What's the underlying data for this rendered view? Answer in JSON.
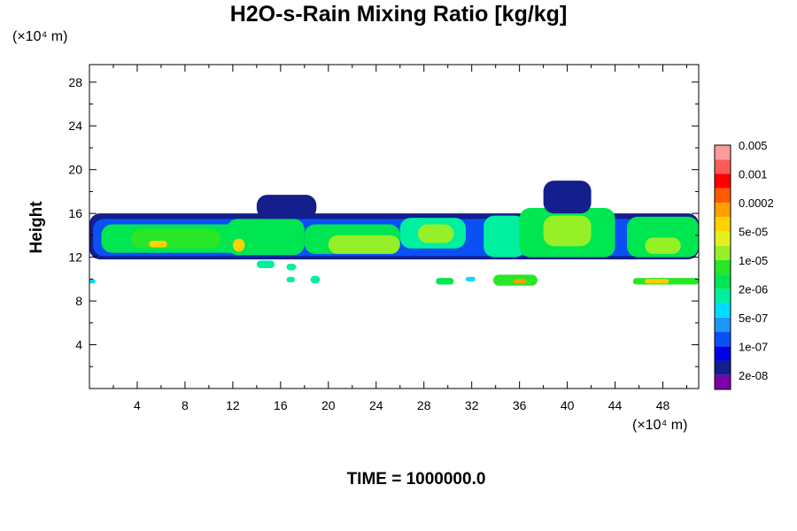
{
  "chart_data": {
    "type": "heatmap",
    "title": "H2O-s-Rain Mixing Ratio [kg/kg]",
    "ylabel": "Height",
    "x_unit": "(×10⁴ m)",
    "y_unit": "(×10⁴ m)",
    "xlim": [
      0,
      51
    ],
    "ylim": [
      0,
      29.6
    ],
    "x_ticks": [
      4,
      8,
      12,
      16,
      20,
      24,
      28,
      32,
      36,
      40,
      44,
      48
    ],
    "y_ticks": [
      4,
      8,
      12,
      16,
      20,
      24,
      28
    ],
    "time_label": "TIME = 1000000.0",
    "legend": {
      "placement": "right",
      "colors": [
        "#7b00a8",
        "#141e8c",
        "#0000e6",
        "#0a50f5",
        "#1e96fa",
        "#00dcff",
        "#00f0a0",
        "#00e650",
        "#28e628",
        "#96f028",
        "#e6f01e",
        "#ffd200",
        "#ffa000",
        "#ff5a00",
        "#ff0000",
        "#ff5a5a",
        "#ff9b9b"
      ],
      "labels": [
        "2e-08",
        "1e-07",
        "5e-07",
        "2e-06",
        "1e-05",
        "5e-05",
        "0.0002",
        "0.001",
        "0.005"
      ]
    },
    "regions": [
      {
        "x0": 0,
        "x1": 51,
        "y0": 11.8,
        "y1": 16.0,
        "level": 1
      },
      {
        "x0": 0.3,
        "x1": 50.5,
        "y0": 12.1,
        "y1": 15.5,
        "level": 3
      },
      {
        "x0": 1,
        "x1": 13,
        "y0": 12.4,
        "y1": 15.0,
        "level": 7
      },
      {
        "x0": 3.5,
        "x1": 11,
        "y0": 12.8,
        "y1": 14.6,
        "level": 8
      },
      {
        "x0": 5,
        "x1": 6.5,
        "y0": 12.9,
        "y1": 13.5,
        "level": 11
      },
      {
        "x0": 11.5,
        "x1": 18,
        "y0": 12.2,
        "y1": 15.5,
        "level": 7
      },
      {
        "x0": 12,
        "x1": 13,
        "y0": 12.5,
        "y1": 13.7,
        "level": 11
      },
      {
        "x0": 14,
        "x1": 19,
        "y0": 15.5,
        "y1": 17.7,
        "level": 1
      },
      {
        "x0": 18,
        "x1": 26,
        "y0": 12.3,
        "y1": 15.0,
        "level": 7
      },
      {
        "x0": 20,
        "x1": 26,
        "y0": 12.3,
        "y1": 14.0,
        "level": 9
      },
      {
        "x0": 26,
        "x1": 31.5,
        "y0": 12.8,
        "y1": 15.6,
        "level": 6
      },
      {
        "x0": 27.5,
        "x1": 30.5,
        "y0": 13.3,
        "y1": 15.0,
        "level": 9
      },
      {
        "x0": 33,
        "x1": 36.5,
        "y0": 12.0,
        "y1": 15.8,
        "level": 6
      },
      {
        "x0": 36,
        "x1": 44,
        "y0": 12.0,
        "y1": 16.5,
        "level": 7
      },
      {
        "x0": 38,
        "x1": 42,
        "y0": 13.0,
        "y1": 15.8,
        "level": 9
      },
      {
        "x0": 38,
        "x1": 42,
        "y0": 16.0,
        "y1": 19.0,
        "level": 1
      },
      {
        "x0": 45,
        "x1": 51,
        "y0": 12.0,
        "y1": 15.7,
        "level": 7
      },
      {
        "x0": 46.5,
        "x1": 49.5,
        "y0": 12.3,
        "y1": 13.8,
        "level": 9
      },
      {
        "x0": 14,
        "x1": 15.5,
        "y0": 11.0,
        "y1": 11.7,
        "level": 6
      },
      {
        "x0": 16.5,
        "x1": 17.3,
        "y0": 10.8,
        "y1": 11.4,
        "level": 6
      },
      {
        "x0": 0,
        "x1": 0.5,
        "y0": 9.6,
        "y1": 10.0,
        "level": 5
      },
      {
        "x0": 16.5,
        "x1": 17.2,
        "y0": 9.7,
        "y1": 10.2,
        "level": 6
      },
      {
        "x0": 18.5,
        "x1": 19.3,
        "y0": 9.6,
        "y1": 10.3,
        "level": 6
      },
      {
        "x0": 29,
        "x1": 30.5,
        "y0": 9.5,
        "y1": 10.1,
        "level": 7
      },
      {
        "x0": 31.5,
        "x1": 32.3,
        "y0": 9.8,
        "y1": 10.2,
        "level": 5
      },
      {
        "x0": 33.8,
        "x1": 37.5,
        "y0": 9.4,
        "y1": 10.4,
        "level": 8
      },
      {
        "x0": 35.5,
        "x1": 36.6,
        "y0": 9.6,
        "y1": 10.0,
        "level": 12
      },
      {
        "x0": 45.5,
        "x1": 51,
        "y0": 9.5,
        "y1": 10.1,
        "level": 8
      },
      {
        "x0": 46.5,
        "x1": 48.5,
        "y0": 9.6,
        "y1": 10.0,
        "level": 11
      }
    ]
  }
}
